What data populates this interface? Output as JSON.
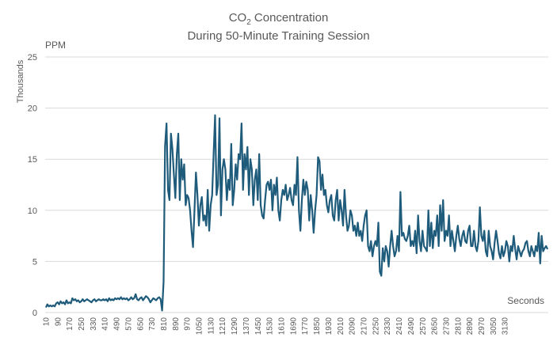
{
  "chart_data": {
    "type": "line",
    "title_main": "CO",
    "title_sub": "2",
    "title_rest": " Concentration",
    "title_line2": "During 50-Minute Training Session",
    "y_unit_label": "PPM",
    "y_display_units": "Thousands",
    "xlabel": "Seconds",
    "ylim": [
      0,
      25
    ],
    "y_ticks": [
      0,
      5,
      10,
      15,
      20,
      25
    ],
    "x_ticks": [
      "10",
      "90",
      "170",
      "250",
      "330",
      "410",
      "490",
      "570",
      "650",
      "730",
      "810",
      "890",
      "970",
      "1050",
      "1130",
      "1210",
      "1290",
      "1370",
      "1450",
      "1530",
      "1610",
      "1690",
      "1770",
      "1850",
      "1930",
      "2010",
      "2090",
      "2170",
      "2250",
      "2330",
      "2410",
      "2490",
      "2570",
      "2650",
      "2730",
      "2810",
      "2890",
      "2970",
      "3050",
      "3130"
    ],
    "x_start": 10,
    "x_step": 10,
    "grid": true,
    "legend": "none",
    "line_color": "#1F5B7A",
    "series": [
      {
        "values": [
          0.5,
          0.8,
          0.6,
          0.7,
          0.6,
          0.7,
          0.6,
          0.9,
          1.0,
          0.8,
          1.1,
          0.9,
          1.0,
          0.8,
          1.2,
          0.9,
          1.0,
          0.9,
          1.4,
          1.2,
          1.3,
          1.1,
          1.2,
          1.0,
          1.1,
          1.3,
          1.1,
          1.2,
          1.3,
          1.2,
          1.1,
          1.0,
          1.2,
          1.3,
          1.1,
          1.2,
          1.3,
          1.2,
          1.2,
          1.3,
          1.2,
          1.3,
          1.1,
          1.4,
          1.2,
          1.3,
          1.2,
          1.4,
          1.3,
          1.4,
          1.3,
          1.5,
          1.3,
          1.4,
          1.3,
          1.4,
          1.2,
          1.3,
          1.5,
          1.3,
          1.4,
          1.8,
          1.3,
          1.2,
          1.4,
          1.5,
          1.2,
          1.4,
          1.6,
          1.5,
          1.3,
          1.0,
          1.2,
          1.4,
          1.3,
          1.2,
          1.4,
          1.5,
          1.3,
          0.2,
          3.0,
          16.3,
          18.5,
          12.0,
          11.0,
          17.5,
          16.0,
          13.5,
          11.2,
          15.5,
          17.5,
          11.0,
          15.0,
          13.0,
          14.5,
          10.5,
          11.5,
          11.2,
          10.0,
          8.0,
          6.4,
          10.0,
          13.7,
          11.5,
          8.5,
          10.5,
          11.3,
          9.0,
          9.5,
          8.5,
          12.0,
          8.0,
          10.5,
          11.5,
          15.5,
          19.3,
          11.5,
          12.5,
          19.0,
          9.5,
          14.0,
          15.0,
          14.0,
          11.0,
          13.0,
          12.0,
          16.5,
          10.5,
          12.0,
          14.5,
          13.0,
          15.5,
          15.0,
          18.5,
          12.0,
          15.5,
          14.0,
          16.2,
          11.5,
          15.0,
          14.0,
          10.5,
          13.0,
          14.0,
          11.0,
          15.5,
          10.5,
          9.5,
          9.2,
          11.0,
          12.5,
          12.8,
          12.0,
          13.0,
          10.0,
          12.5,
          11.5,
          13.2,
          10.0,
          9.0,
          11.0,
          12.0,
          11.5,
          12.5,
          11.0,
          11.5,
          12.2,
          11.0,
          10.5,
          12.5,
          11.5,
          15.2,
          10.0,
          8.0,
          11.0,
          13.0,
          11.5,
          12.8,
          12.0,
          9.0,
          11.5,
          10.0,
          7.8,
          10.0,
          11.5,
          15.2,
          14.8,
          12.0,
          13.5,
          11.5,
          12.0,
          10.5,
          9.8,
          11.0,
          11.5,
          9.5,
          9.0,
          11.0,
          12.0,
          9.0,
          11.0,
          10.0,
          8.5,
          12.0,
          9.5,
          8.0,
          8.5,
          10.0,
          9.5,
          8.0,
          8.5,
          7.5,
          8.8,
          7.5,
          8.0,
          7.0,
          8.5,
          9.5,
          10.0,
          6.5,
          6.0,
          7.0,
          5.5,
          6.5,
          7.0,
          6.5,
          8.8,
          4.0,
          3.6,
          6.3,
          5.0,
          6.5,
          6.0,
          4.5,
          6.5,
          8.0,
          6.5,
          5.5,
          6.0,
          7.5,
          6.0,
          11.8,
          7.5,
          7.8,
          7.2,
          7.0,
          7.5,
          8.5,
          6.5,
          7.0,
          6.5,
          8.0,
          5.8,
          9.5,
          7.0,
          6.0,
          8.0,
          6.5,
          6.3,
          6.0,
          10.0,
          6.5,
          8.8,
          6.3,
          8.0,
          7.5,
          9.5,
          6.5,
          10.5,
          8.0,
          11.0,
          7.0,
          8.0,
          7.5,
          9.5,
          6.5,
          8.0,
          7.0,
          6.0,
          7.5,
          8.5,
          7.2,
          6.5,
          7.5,
          8.0,
          7.0,
          6.8,
          8.0,
          8.5,
          6.5,
          6.5,
          8.0,
          6.5,
          6.0,
          7.0,
          10.3,
          7.5,
          7.0,
          8.0,
          6.0,
          5.5,
          8.0,
          6.5,
          6.0,
          5.2,
          6.8,
          8.0,
          7.0,
          5.8,
          5.3,
          6.5,
          5.5,
          6.0,
          7.0,
          6.5,
          5.0,
          6.5,
          6.0,
          7.5,
          6.2,
          5.2,
          6.5,
          6.0,
          5.5,
          6.0,
          6.2,
          6.8,
          7.0,
          6.0,
          5.5,
          6.5,
          6.0,
          5.5,
          6.5,
          6.0,
          7.8,
          4.8,
          7.5,
          6.0,
          6.3,
          6.5,
          6.2
        ]
      }
    ]
  }
}
